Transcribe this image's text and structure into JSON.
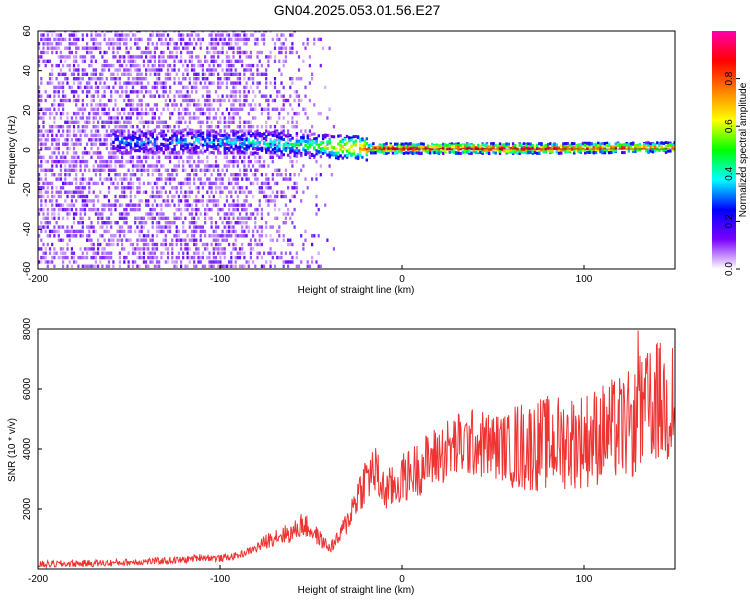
{
  "title": "GN04.2025.053.01.56.E27",
  "chart_data": [
    {
      "type": "heatmap",
      "xlabel": "Height of straight line (km)",
      "ylabel": "Frequency (Hz)",
      "xlim": [
        -200,
        150
      ],
      "ylim": [
        -60,
        60
      ],
      "xticks": [
        -200,
        -100,
        0,
        100
      ],
      "yticks": [
        -60,
        -40,
        -20,
        0,
        20,
        40,
        60
      ],
      "colorbar": {
        "label": "Normalized spectral amplitude",
        "range": [
          0,
          1
        ],
        "ticks": [
          0.0,
          0.2,
          0.4,
          0.6,
          0.8
        ],
        "tick_labels": [
          "0.0",
          "0.2",
          "0.4",
          "0.6",
          "0.8"
        ],
        "colormap": [
          "#ffffff",
          "#7a00ff",
          "#0000ff",
          "#00ffff",
          "#00ff00",
          "#ffff00",
          "#ff8000",
          "#ff0000",
          "#ff00aa"
        ]
      },
      "band": {
        "description_points": [
          {
            "x": -150,
            "y": 4,
            "amp": 0.3
          },
          {
            "x": -100,
            "y": 4,
            "amp": 0.35
          },
          {
            "x": -50,
            "y": 2,
            "amp": 0.5
          },
          {
            "x": -20,
            "y": 0.5,
            "amp": 0.85
          },
          {
            "x": 0,
            "y": 0.5,
            "amp": 0.95
          },
          {
            "x": 80,
            "y": 0.5,
            "amp": 0.95
          },
          {
            "x": 140,
            "y": 1,
            "amp": 0.75
          }
        ]
      }
    },
    {
      "type": "line",
      "xlabel": "Height of straight line (km)",
      "ylabel": "SNR (10 * v/v)",
      "xlim": [
        -200,
        150
      ],
      "ylim": [
        0,
        8000
      ],
      "xticks": [
        -200,
        -100,
        0,
        100
      ],
      "yticks": [
        2000,
        4000,
        6000,
        8000
      ],
      "color": "#ee3333",
      "series": [
        {
          "x": [
            -200,
            -180,
            -160,
            -140,
            -120,
            -110,
            -100,
            -90,
            -80,
            -70,
            -60,
            -55,
            -50,
            -40,
            -35,
            -30,
            -25,
            -20,
            -15,
            -10,
            -5,
            0,
            10,
            20,
            30,
            40,
            50,
            60,
            70,
            80,
            90,
            100,
            110,
            120,
            130,
            135,
            140,
            145,
            150
          ],
          "y": [
            150,
            180,
            200,
            250,
            300,
            400,
            350,
            450,
            700,
            1100,
            1200,
            1500,
            1300,
            700,
            1000,
            1600,
            2400,
            3000,
            3300,
            2600,
            2700,
            3000,
            3400,
            3800,
            4100,
            4200,
            4100,
            4050,
            4100,
            4200,
            4250,
            4300,
            4500,
            4700,
            4900,
            5300,
            5600,
            5400,
            5600
          ]
        }
      ]
    }
  ]
}
